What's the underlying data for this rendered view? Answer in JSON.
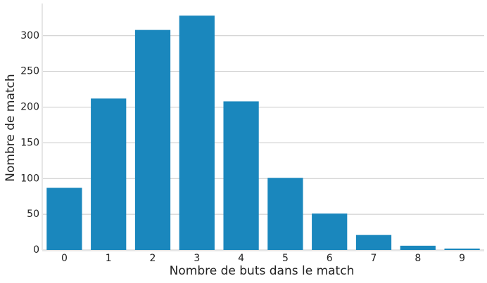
{
  "chart_data": {
    "type": "bar",
    "x_label": "Nombre de buts dans le match",
    "y_label": "Nombre de match",
    "categories": [
      "0",
      "1",
      "2",
      "3",
      "4",
      "5",
      "6",
      "7",
      "8",
      "9"
    ],
    "values": [
      87,
      212,
      308,
      328,
      208,
      101,
      51,
      21,
      6,
      2
    ],
    "color": "#1a87bd",
    "ylim": [
      0,
      345
    ],
    "yticks": [
      0,
      50,
      100,
      150,
      200,
      250,
      300
    ],
    "grid": true
  }
}
